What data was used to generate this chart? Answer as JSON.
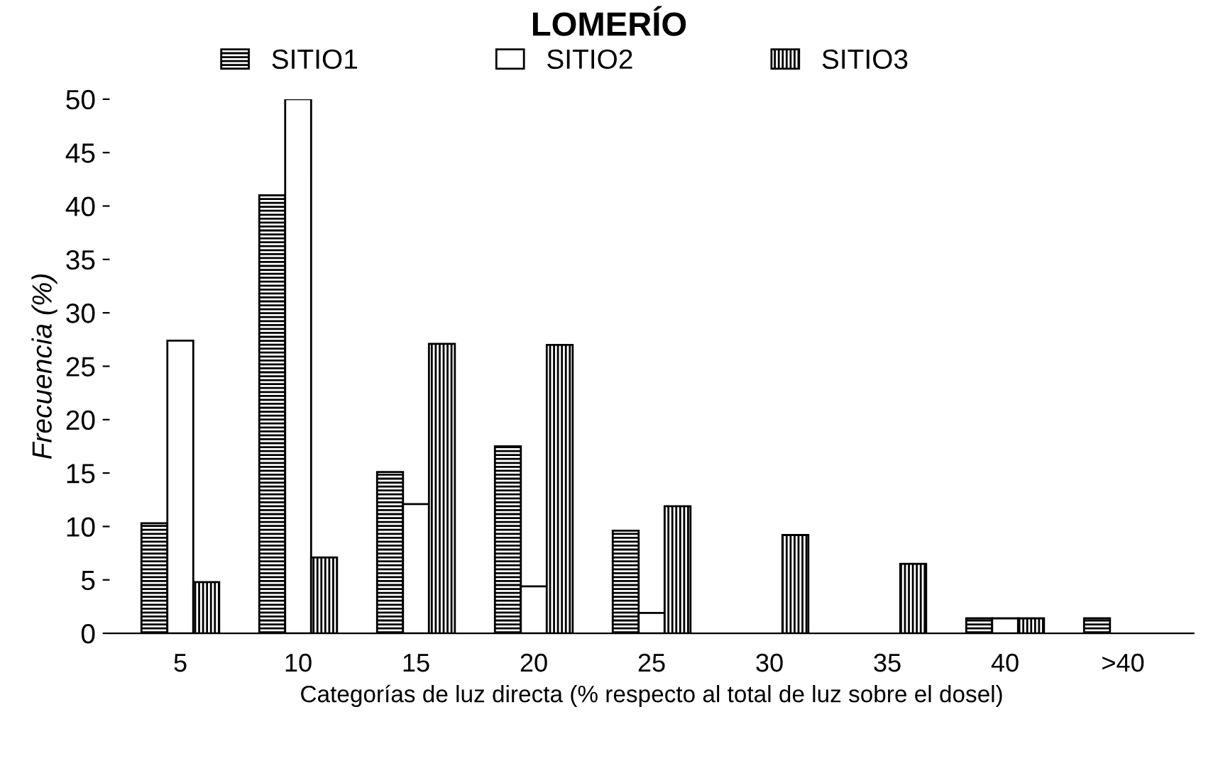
{
  "chart_data": {
    "type": "bar",
    "title": "LOMERÍO",
    "xlabel": "Categorías de luz directa (% respecto al total de luz sobre el dosel)",
    "ylabel": "Frecuencia (%)",
    "categories": [
      "5",
      "10",
      "15",
      "20",
      "25",
      "30",
      "35",
      "40",
      ">40"
    ],
    "series": [
      {
        "name": "SITIO1",
        "color": "#000000",
        "values": [
          10.3,
          41,
          15.1,
          17.5,
          9.6,
          null,
          null,
          1.4,
          1.4
        ]
      },
      {
        "name": "SITIO2",
        "color": "#ffffff",
        "values": [
          27.4,
          50,
          12.1,
          4.4,
          1.9,
          null,
          null,
          1.4,
          null
        ]
      },
      {
        "name": "SITIO3",
        "color": "#000000",
        "values": [
          4.8,
          7.1,
          27.1,
          27,
          11.9,
          9.2,
          6.5,
          1.4,
          null
        ]
      }
    ],
    "ylim": [
      0,
      50
    ],
    "yticks": [
      0,
      5,
      10,
      15,
      20,
      25,
      30,
      35,
      40,
      45,
      50
    ],
    "grid": false,
    "legend": "top"
  }
}
